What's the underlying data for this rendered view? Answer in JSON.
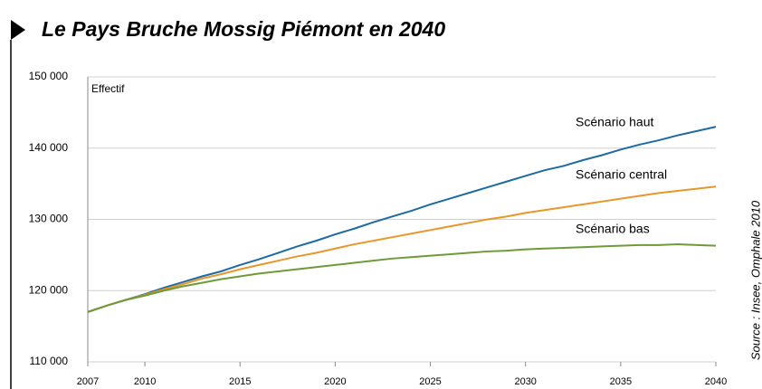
{
  "chart_data": {
    "type": "line",
    "title": "Le Pays Bruche Mossig Piémont en 2040",
    "y_label": "Effectif",
    "source": "Source : Insee, Omphale 2010",
    "x": [
      2007,
      2008,
      2009,
      2010,
      2011,
      2012,
      2013,
      2014,
      2015,
      2016,
      2017,
      2018,
      2019,
      2020,
      2021,
      2022,
      2023,
      2024,
      2025,
      2026,
      2027,
      2028,
      2029,
      2030,
      2031,
      2032,
      2033,
      2034,
      2035,
      2036,
      2037,
      2038,
      2039,
      2040
    ],
    "xlim": [
      2007,
      2040
    ],
    "xticks": [
      2007,
      2010,
      2015,
      2020,
      2025,
      2030,
      2035,
      2040
    ],
    "ylim": [
      110000,
      150000
    ],
    "yticks": [
      {
        "value": 110000,
        "label": "110 000"
      },
      {
        "value": 120000,
        "label": "120 000"
      },
      {
        "value": 130000,
        "label": "130 000"
      },
      {
        "value": 140000,
        "label": "140 000"
      },
      {
        "value": 150000,
        "label": "150 000"
      }
    ],
    "grid": true,
    "series": [
      {
        "name": "Scénario haut",
        "color": "#1f6aa0",
        "values": [
          117000,
          117900,
          118700,
          119500,
          120400,
          121200,
          122000,
          122700,
          123600,
          124400,
          125300,
          126200,
          127000,
          127900,
          128700,
          129600,
          130400,
          131200,
          132100,
          132900,
          133700,
          134500,
          135300,
          136100,
          136900,
          137500,
          138300,
          139000,
          139800,
          140500,
          141100,
          141800,
          142400,
          143000
        ]
      },
      {
        "name": "Scénario central",
        "color": "#e8972a",
        "values": [
          117000,
          117900,
          118700,
          119400,
          120200,
          120900,
          121700,
          122300,
          123000,
          123600,
          124200,
          124800,
          125300,
          125900,
          126500,
          127000,
          127500,
          128000,
          128500,
          129000,
          129500,
          130000,
          130400,
          130900,
          131300,
          131700,
          132100,
          132500,
          132900,
          133300,
          133700,
          134000,
          134300,
          134600
        ]
      },
      {
        "name": "Scénario bas",
        "color": "#6f9a3a",
        "values": [
          117000,
          117900,
          118700,
          119300,
          120000,
          120600,
          121100,
          121600,
          122000,
          122400,
          122700,
          123000,
          123300,
          123600,
          123900,
          124200,
          124500,
          124700,
          124900,
          125100,
          125300,
          125500,
          125600,
          125800,
          125900,
          126000,
          126100,
          126200,
          126300,
          126400,
          126400,
          126500,
          126400,
          126300
        ]
      }
    ]
  }
}
